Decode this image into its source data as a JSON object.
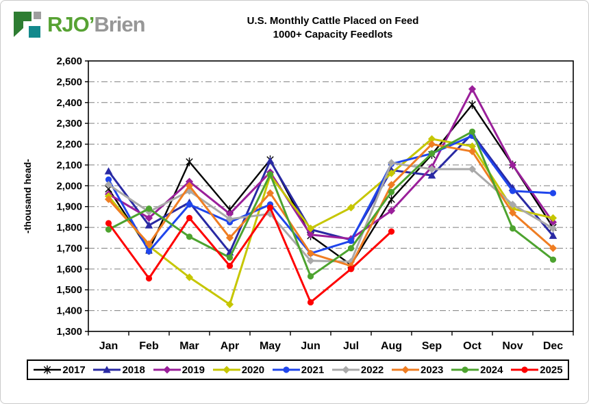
{
  "header": {
    "logo": {
      "brand_green": "RJO’",
      "brand_gray": "Brien"
    },
    "title_line1": "U.S. Monthly Cattle Placed on Feed",
    "title_line2": "1000+ Capacity Feedlots"
  },
  "chart_data": {
    "type": "line",
    "title": "U.S. Monthly Cattle Placed on Feed",
    "subtitle": "1000+ Capacity Feedlots",
    "ylabel": "-thousand head-",
    "ylim": [
      1300,
      2600
    ],
    "ytick_step": 100,
    "grid": "horizontal dash-dot",
    "legend_position": "bottom",
    "categories": [
      "Jan",
      "Feb",
      "Mar",
      "Apr",
      "May",
      "Jun",
      "Jul",
      "Aug",
      "Sep",
      "Oct",
      "Nov",
      "Dec"
    ],
    "series": [
      {
        "name": "2017",
        "color": "#000000",
        "marker": "star",
        "values": [
          1985,
          1690,
          2115,
          1885,
          2125,
          1760,
          1620,
          1935,
          2150,
          2390,
          2100,
          1800
        ]
      },
      {
        "name": "2018",
        "color": "#2929a3",
        "marker": "triangle",
        "values": [
          2070,
          1810,
          1920,
          1680,
          2120,
          1790,
          1740,
          2075,
          2050,
          2250,
          1990,
          1760
        ]
      },
      {
        "name": "2019",
        "color": "#9a1f9a",
        "marker": "diamond",
        "values": [
          1960,
          1845,
          2020,
          1865,
          2065,
          1765,
          1745,
          1880,
          2090,
          2465,
          2100,
          1825
        ]
      },
      {
        "name": "2020",
        "color": "#c6c600",
        "marker": "diamond",
        "values": [
          1950,
          1710,
          1560,
          1430,
          2050,
          1795,
          1895,
          2060,
          2225,
          2190,
          1890,
          1845
        ]
      },
      {
        "name": "2021",
        "color": "#1f45ec",
        "marker": "circle",
        "values": [
          2030,
          1685,
          1910,
          1825,
          1910,
          1675,
          1735,
          2105,
          2155,
          2240,
          1975,
          1965
        ]
      },
      {
        "name": "2022",
        "color": "#a9a9a9",
        "marker": "diamond",
        "values": [
          2005,
          1875,
          1975,
          1840,
          1865,
          1640,
          1635,
          2110,
          2080,
          2080,
          1910,
          1795
        ]
      },
      {
        "name": "2023",
        "color": "#ef7d22",
        "marker": "diamond",
        "values": [
          1935,
          1720,
          2000,
          1750,
          1965,
          1675,
          1615,
          2005,
          2200,
          2165,
          1870,
          1700
        ]
      },
      {
        "name": "2024",
        "color": "#4da32f",
        "marker": "circle",
        "values": [
          1790,
          1890,
          1755,
          1655,
          2055,
          1565,
          1700,
          1970,
          2155,
          2260,
          1795,
          1645
        ]
      },
      {
        "name": "2025",
        "color": "#fe0000",
        "marker": "circle",
        "values": [
          1820,
          1555,
          1845,
          1615,
          1895,
          1440,
          1600,
          1780,
          null,
          null,
          null,
          null
        ]
      }
    ]
  }
}
